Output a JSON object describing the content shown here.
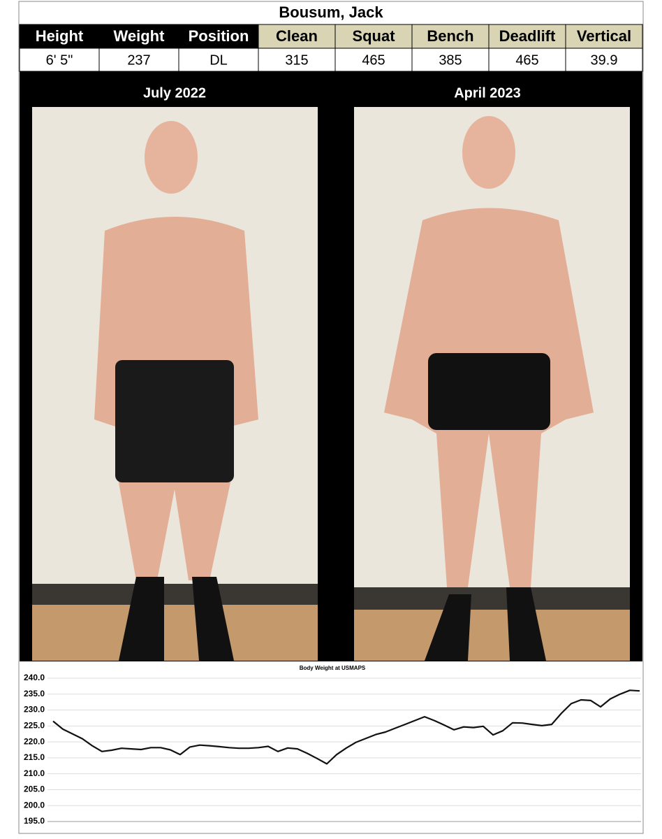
{
  "header": {
    "title": "Bousum, Jack",
    "columns": [
      "Height",
      "Weight",
      "Position",
      "Clean",
      "Squat",
      "Bench",
      "Deadlift",
      "Vertical"
    ],
    "values": [
      "6' 5\"",
      237,
      "DL",
      315,
      465,
      385,
      465,
      39.9
    ]
  },
  "photos": [
    {
      "label": "July 2022"
    },
    {
      "label": "April 2023"
    }
  ],
  "chart_data": {
    "type": "line",
    "title": "Body Weight at USMAPS",
    "series": [
      {
        "color": "#111111",
        "values": [
          226.5,
          224,
          222.5,
          221,
          218.8,
          217,
          217.4,
          218,
          217.8,
          217.6,
          218.2,
          218.2,
          217.5,
          216,
          218.4,
          219,
          218.8,
          218.5,
          218.2,
          218,
          218,
          218.2,
          218.6,
          217,
          218.1,
          217.8,
          216.4,
          214.8,
          213.1,
          216,
          218.1,
          219.9,
          221.1,
          222.3,
          223.1,
          224.3,
          225.5,
          226.7,
          227.9,
          226.7,
          225.3,
          223.8,
          224.7,
          224.5,
          224.9,
          222.2,
          223.5,
          226,
          225.9,
          225.5,
          225.1,
          225.5,
          229,
          232,
          233.2,
          233,
          231,
          233.5,
          235,
          236.2,
          236
        ]
      }
    ],
    "ylim": [
      195,
      240
    ],
    "yticks": [
      {
        "value": 195,
        "label": "195.0"
      },
      {
        "value": 200,
        "label": "200.0"
      },
      {
        "value": 205,
        "label": "205.0"
      },
      {
        "value": 210,
        "label": "210.0"
      },
      {
        "value": 215,
        "label": "215.0"
      },
      {
        "value": 220,
        "label": "220.0"
      },
      {
        "value": 225,
        "label": "225.0"
      },
      {
        "value": 230,
        "label": "230.0"
      },
      {
        "value": 235,
        "label": "235.0"
      },
      {
        "value": 240,
        "label": "240.0"
      }
    ],
    "grid": true
  }
}
